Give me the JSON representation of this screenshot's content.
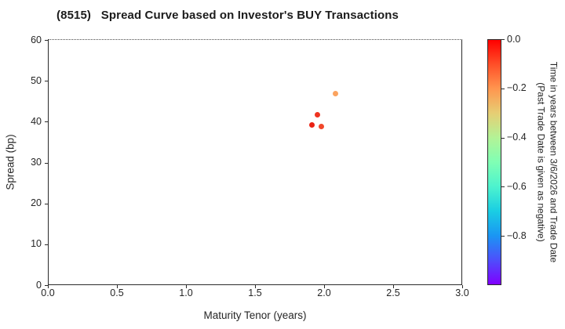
{
  "title": "(8515)   Spread Curve based on Investor's BUY Transactions",
  "chart_data": {
    "type": "scatter",
    "title": "(8515)   Spread Curve based on Investor's BUY Transactions",
    "xlabel": "Maturity Tenor (years)",
    "ylabel": "Spread (bp)",
    "xlim": [
      0.0,
      3.0
    ],
    "ylim": [
      0,
      60
    ],
    "xticks": [
      0.0,
      0.5,
      1.0,
      1.5,
      2.0,
      2.5,
      3.0
    ],
    "xtick_labels": [
      "0.0",
      "0.5",
      "1.0",
      "1.5",
      "2.0",
      "2.5",
      "3.0"
    ],
    "yticks": [
      0,
      10,
      20,
      30,
      40,
      50,
      60
    ],
    "ytick_labels": [
      "0",
      "10",
      "20",
      "30",
      "40",
      "50",
      "60"
    ],
    "grid": "dotted",
    "points": [
      {
        "x": 2.08,
        "y": 46.8,
        "color_value": -0.22,
        "color": "#fba35f"
      },
      {
        "x": 1.95,
        "y": 41.7,
        "color_value": -0.03,
        "color": "#ef3420"
      },
      {
        "x": 1.91,
        "y": 39.2,
        "color_value": -0.01,
        "color": "#ea2113"
      },
      {
        "x": 1.98,
        "y": 38.9,
        "color_value": -0.05,
        "color": "#f1472a"
      }
    ],
    "colorbar": {
      "label_line1": "Time in years between 3/6/2026 and Trade Date",
      "label_line2": "(Past Trade Date is given as negative)",
      "range": [
        0.0,
        -1.0
      ],
      "tick_values": [
        0.0,
        -0.2,
        -0.4,
        -0.6,
        -0.8
      ],
      "tick_labels": [
        "0.0",
        "−0.2",
        "−0.4",
        "−0.6",
        "−0.8"
      ],
      "colormap": "rainbow",
      "gradient": [
        {
          "stop": 0,
          "color": "#ff0000"
        },
        {
          "stop": 10,
          "color": "#ff4f28"
        },
        {
          "stop": 20,
          "color": "#ff964f"
        },
        {
          "stop": 30,
          "color": "#e6ce74"
        },
        {
          "stop": 40,
          "color": "#b3f396"
        },
        {
          "stop": 50,
          "color": "#80ffb4"
        },
        {
          "stop": 60,
          "color": "#4df3ce"
        },
        {
          "stop": 70,
          "color": "#1acee3"
        },
        {
          "stop": 80,
          "color": "#1a96f3"
        },
        {
          "stop": 90,
          "color": "#4d4ffc"
        },
        {
          "stop": 100,
          "color": "#8000ff"
        }
      ]
    }
  }
}
